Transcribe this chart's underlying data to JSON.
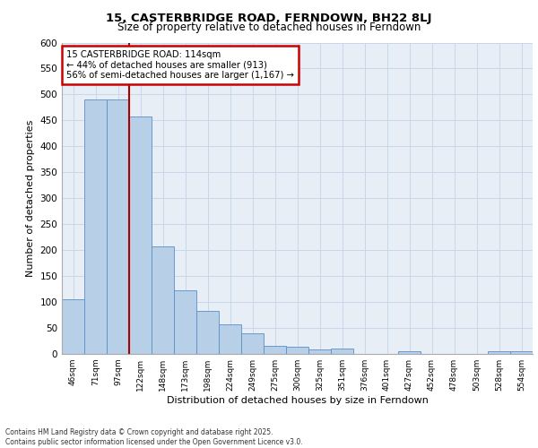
{
  "title1": "15, CASTERBRIDGE ROAD, FERNDOWN, BH22 8LJ",
  "title2": "Size of property relative to detached houses in Ferndown",
  "xlabel": "Distribution of detached houses by size in Ferndown",
  "ylabel": "Number of detached properties",
  "categories": [
    "46sqm",
    "71sqm",
    "97sqm",
    "122sqm",
    "148sqm",
    "173sqm",
    "198sqm",
    "224sqm",
    "249sqm",
    "275sqm",
    "300sqm",
    "325sqm",
    "351sqm",
    "376sqm",
    "401sqm",
    "427sqm",
    "452sqm",
    "478sqm",
    "503sqm",
    "528sqm",
    "554sqm"
  ],
  "values": [
    105,
    490,
    490,
    457,
    207,
    122,
    83,
    57,
    39,
    15,
    14,
    9,
    11,
    0,
    0,
    5,
    0,
    0,
    0,
    5,
    5
  ],
  "bar_color": "#b8cfe8",
  "bar_edge_color": "#5b8fc9",
  "grid_color": "#c8d8e8",
  "background_color": "#e8eef6",
  "vline_x": 2.5,
  "vline_color": "#aa0000",
  "annotation_text": "15 CASTERBRIDGE ROAD: 114sqm\n← 44% of detached houses are smaller (913)\n56% of semi-detached houses are larger (1,167) →",
  "annotation_box_color": "#ffffff",
  "annotation_box_edge": "#cc0000",
  "footer": "Contains HM Land Registry data © Crown copyright and database right 2025.\nContains public sector information licensed under the Open Government Licence v3.0.",
  "ylim": [
    0,
    600
  ],
  "yticks": [
    0,
    50,
    100,
    150,
    200,
    250,
    300,
    350,
    400,
    450,
    500,
    550,
    600
  ]
}
